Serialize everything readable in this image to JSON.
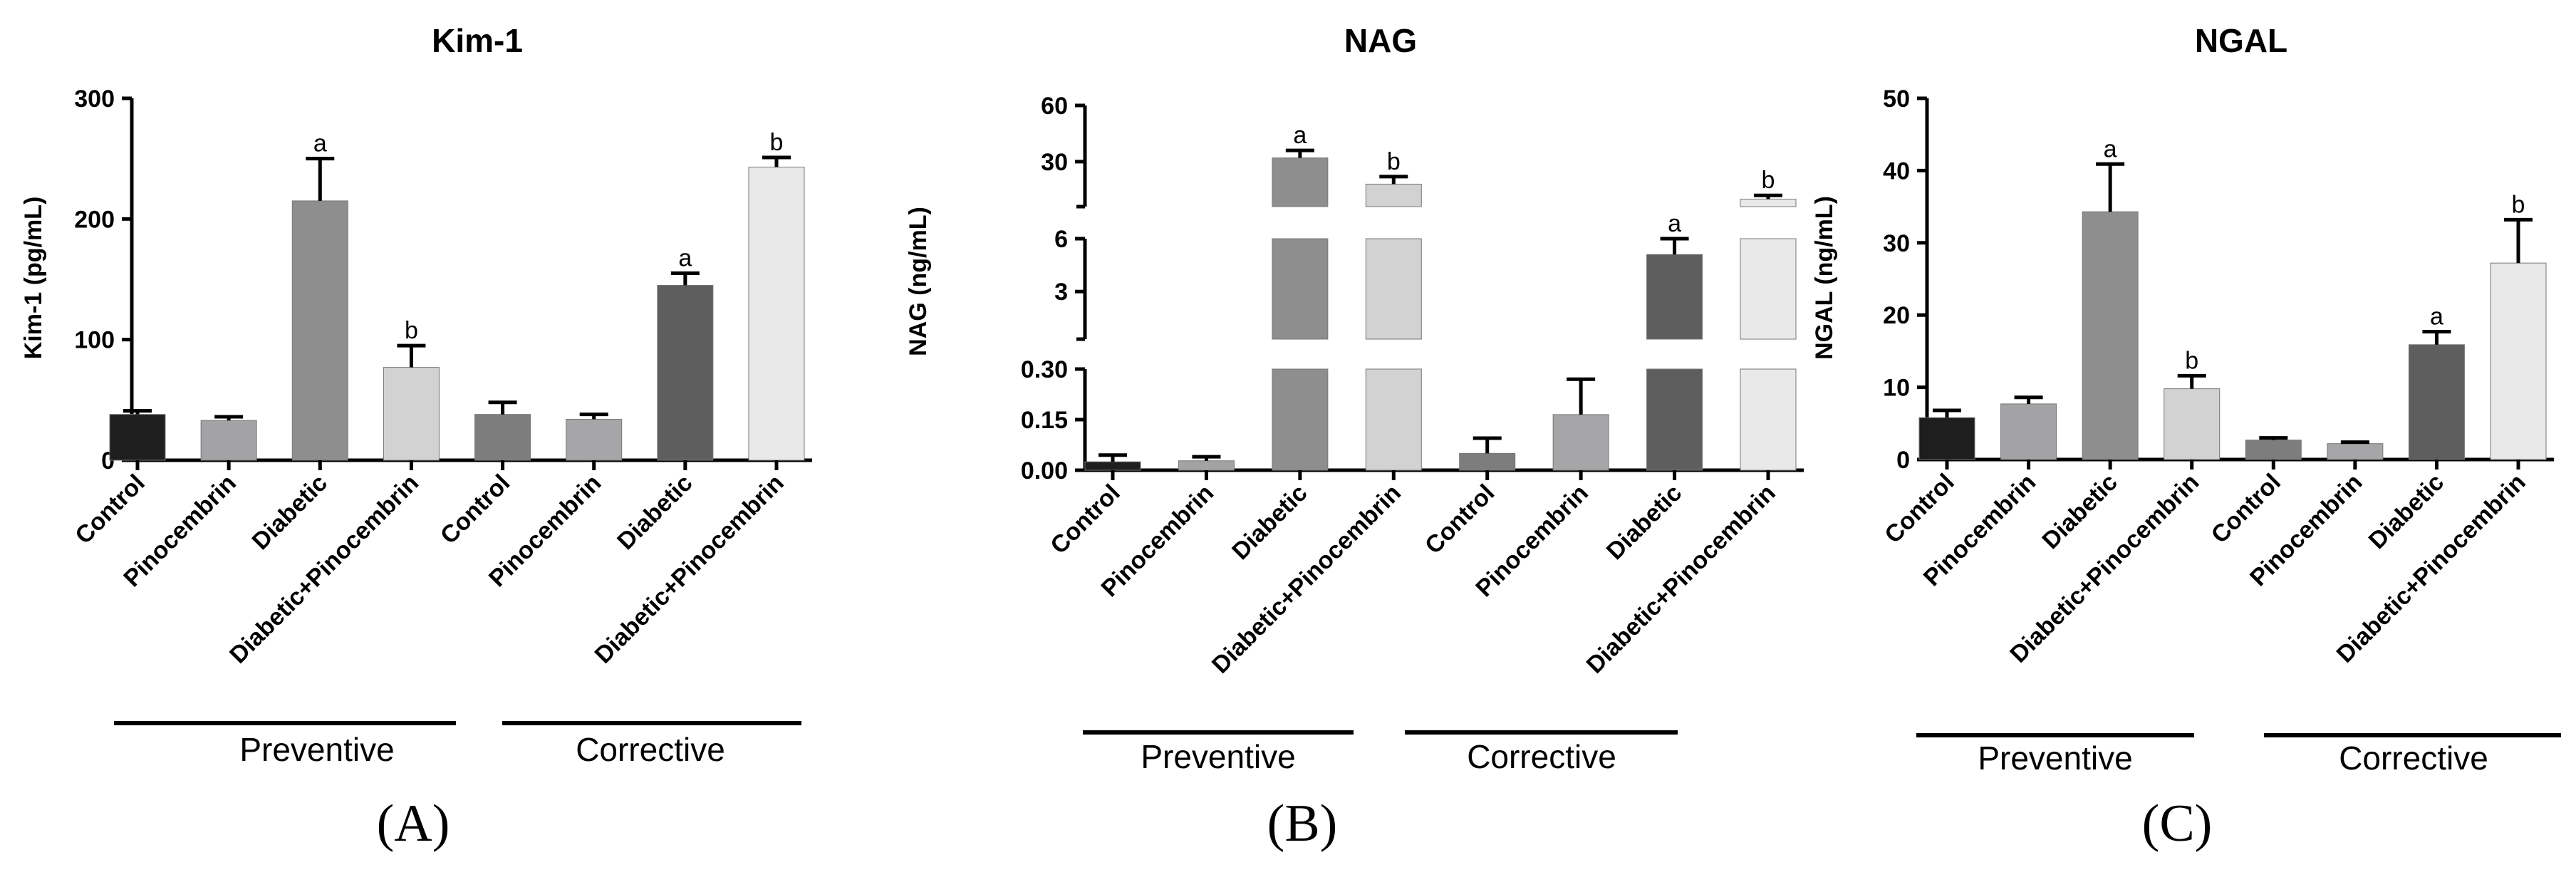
{
  "chart_data": [
    {
      "type": "bar",
      "panel_label": "(A)",
      "title": "Kim-1",
      "ylabel": "Kim-1 (pg/mL)",
      "ylim": [
        0,
        300
      ],
      "yticks": [
        "0",
        "100",
        "200",
        "300"
      ],
      "categories": [
        "Control",
        "Pinocembrin",
        "Diabetic",
        "Diabetic+Pinocembrin",
        "Control",
        "Pinocembrin",
        "Diabetic",
        "Diabetic+Pinocembrin"
      ],
      "values": [
        38,
        33,
        215,
        77,
        38,
        34,
        145,
        243
      ],
      "errors": [
        3,
        3,
        35,
        18,
        10,
        4,
        10,
        8
      ],
      "significance": [
        "",
        "",
        "a",
        "b",
        "",
        "",
        "a",
        "b"
      ],
      "groups": [
        {
          "label": "Preventive"
        },
        {
          "label": "Corrective"
        }
      ]
    },
    {
      "type": "bar",
      "panel_label": "(B)",
      "title": "NAG",
      "ylabel": "NAG (ng/mL)",
      "axis_segments": [
        {
          "range": [
            0,
            0.3
          ],
          "ticks": [
            "0.00",
            "0.15",
            "0.30"
          ]
        },
        {
          "range": [
            0.3,
            6
          ],
          "ticks": [
            "3",
            "6"
          ]
        },
        {
          "range": [
            6,
            60
          ],
          "ticks": [
            "30",
            "60"
          ]
        }
      ],
      "categories": [
        "Control",
        "Pinocembrin",
        "Diabetic",
        "Diabetic+Pinocembrin",
        "Control",
        "Pinocembrin",
        "Diabetic",
        "Diabetic+Pinocembrin"
      ],
      "values": [
        0.025,
        0.028,
        32,
        18,
        0.05,
        0.165,
        5.1,
        10
      ],
      "errors": [
        0.02,
        0.012,
        4,
        4,
        0.045,
        0.105,
        0.9,
        2
      ],
      "significance": [
        "",
        "",
        "a",
        "b",
        "",
        "",
        "a",
        "b"
      ],
      "groups": [
        {
          "label": "Preventive"
        },
        {
          "label": "Corrective"
        }
      ]
    },
    {
      "type": "bar",
      "panel_label": "(C)",
      "title": "NGAL",
      "ylabel": "NGAL (ng/mL)",
      "ylim": [
        0,
        50
      ],
      "yticks": [
        "0",
        "10",
        "20",
        "30",
        "40",
        "50"
      ],
      "categories": [
        "Control",
        "Pinocembrin",
        "Diabetic",
        "Diabetic+Pinocembrin",
        "Control",
        "Pinocembrin",
        "Diabetic",
        "Diabetic+Pinocembrin"
      ],
      "values": [
        5.8,
        7.7,
        34.3,
        9.8,
        2.7,
        2.2,
        15.9,
        27.2
      ],
      "errors": [
        1.0,
        0.9,
        6.6,
        1.8,
        0.3,
        0.2,
        1.8,
        6.0
      ],
      "significance": [
        "",
        "",
        "a",
        "b",
        "",
        "",
        "a",
        "b"
      ],
      "groups": [
        {
          "label": "Preventive"
        },
        {
          "label": "Corrective"
        }
      ]
    }
  ],
  "colors": {
    "bar_fills": [
      "#1e1e1e",
      "#a3a3a6",
      "#8e8e8e",
      "#d2d2d2",
      "#7d7d7d",
      "#a6a6a8",
      "#5e5e5e",
      "#e9e9e9"
    ],
    "axis": "#000000",
    "background": "#ffffff"
  }
}
